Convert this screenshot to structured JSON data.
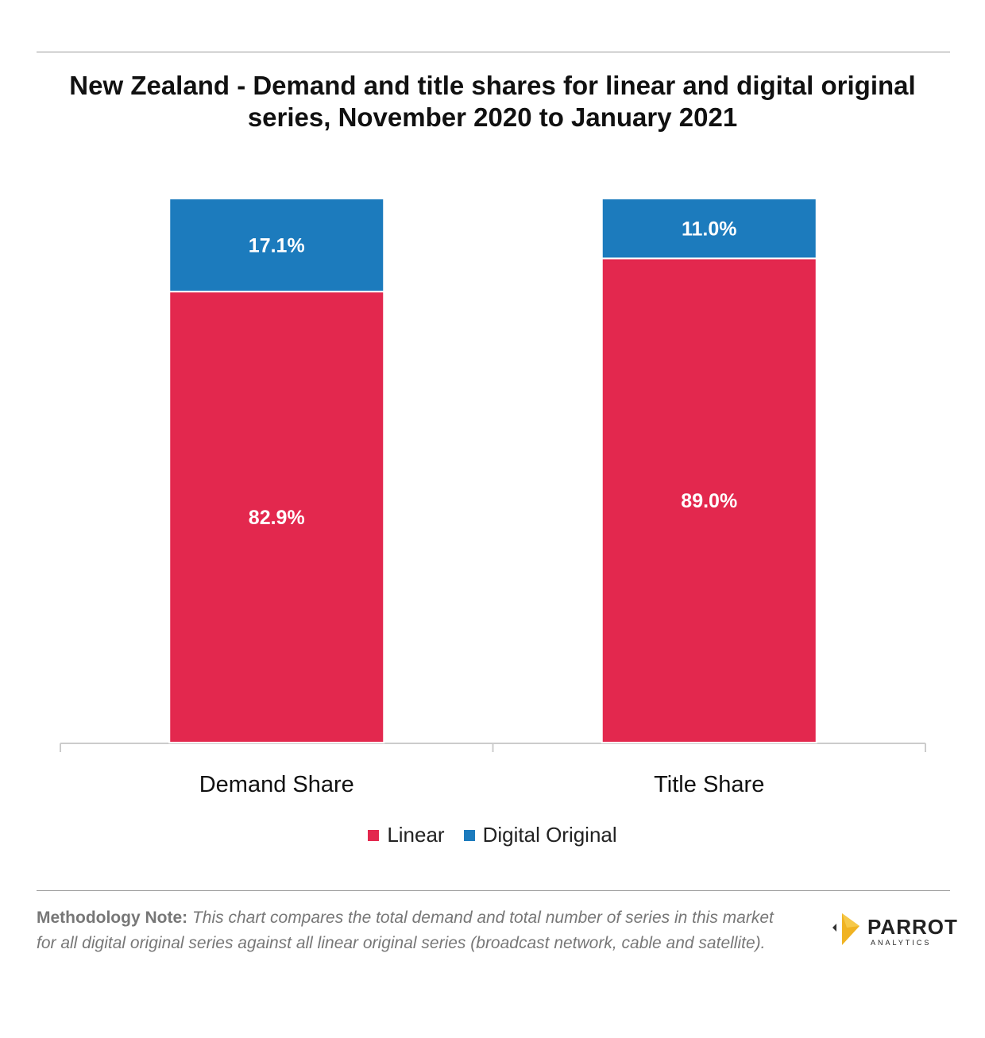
{
  "title": "New Zealand - Demand and title shares for linear and digital original series, November 2020 to January 2021",
  "chart_data": {
    "type": "bar",
    "stacked": true,
    "categories": [
      "Demand Share",
      "Title Share"
    ],
    "series": [
      {
        "name": "Linear",
        "color": "#e3284e",
        "values": [
          82.9,
          89.0
        ],
        "labels": [
          "82.9%",
          "89.0%"
        ]
      },
      {
        "name": "Digital Original",
        "color": "#1c7bbd",
        "values": [
          17.1,
          11.0
        ],
        "labels": [
          "17.1%",
          "11.0%"
        ]
      }
    ],
    "ylim": [
      0,
      100
    ],
    "grid": false,
    "legend": "bottom"
  },
  "legend": {
    "linear": "Linear",
    "digital": "Digital Original"
  },
  "note": {
    "label": "Methodology Note:",
    "text": "This chart compares the total demand and total number of series in this market for all digital original series against all linear original series (broadcast network, cable and satellite)."
  },
  "logo": {
    "name": "PARROT",
    "sub": "ANALYTICS"
  }
}
